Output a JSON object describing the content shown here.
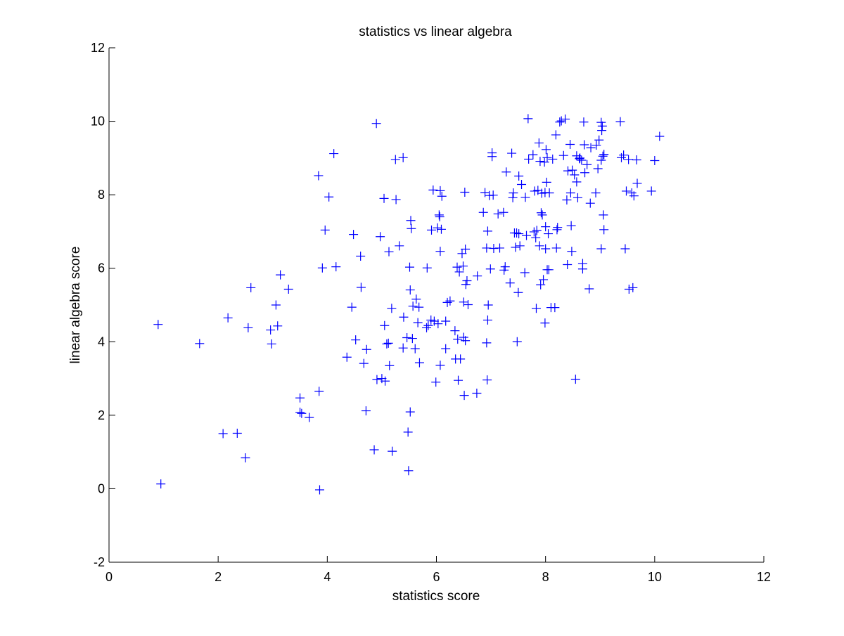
{
  "chart_data": {
    "type": "scatter",
    "title": "statistics vs linear algebra",
    "xlabel": "statistics score",
    "ylabel": "linear algebra score",
    "xlim": [
      0,
      12
    ],
    "ylim": [
      -2,
      12
    ],
    "x_ticks": [
      "0",
      "2",
      "4",
      "6",
      "8",
      "10",
      "12"
    ],
    "y_ticks": [
      "-2",
      "0",
      "2",
      "4",
      "6",
      "8",
      "10",
      "12"
    ],
    "marker": "+",
    "marker_color": "#0000ff",
    "grid": false,
    "legend": false,
    "series": [
      {
        "points": [
          [
            0.9,
            4.47
          ],
          [
            0.95,
            0.13
          ],
          [
            1.66,
            3.95
          ],
          [
            2.09,
            1.5
          ],
          [
            2.18,
            4.65
          ],
          [
            2.35,
            1.51
          ],
          [
            2.5,
            0.84
          ],
          [
            2.55,
            4.38
          ],
          [
            2.6,
            5.47
          ],
          [
            2.96,
            4.32
          ],
          [
            2.98,
            3.94
          ],
          [
            3.06,
            5.0
          ],
          [
            3.09,
            4.43
          ],
          [
            3.14,
            5.82
          ],
          [
            3.29,
            5.43
          ],
          [
            3.5,
            2.47
          ],
          [
            3.5,
            2.08
          ],
          [
            3.53,
            2.05
          ],
          [
            3.67,
            1.94
          ],
          [
            3.84,
            8.52
          ],
          [
            3.85,
            2.65
          ],
          [
            3.86,
            -0.03
          ],
          [
            3.91,
            6.01
          ],
          [
            3.96,
            7.04
          ],
          [
            4.03,
            7.94
          ],
          [
            4.12,
            9.12
          ],
          [
            4.16,
            6.04
          ],
          [
            4.36,
            3.58
          ],
          [
            4.45,
            4.94
          ],
          [
            4.48,
            6.92
          ],
          [
            4.52,
            4.05
          ],
          [
            4.61,
            6.33
          ],
          [
            4.62,
            5.48
          ],
          [
            4.67,
            3.41
          ],
          [
            4.71,
            2.12
          ],
          [
            4.72,
            3.79
          ],
          [
            4.86,
            1.06
          ],
          [
            4.9,
            9.94
          ],
          [
            4.91,
            2.97
          ],
          [
            4.97,
            6.86
          ],
          [
            5.0,
            3.0
          ],
          [
            5.04,
            7.9
          ],
          [
            5.05,
            4.44
          ],
          [
            5.06,
            2.93
          ],
          [
            5.09,
            3.94
          ],
          [
            5.12,
            3.96
          ],
          [
            5.13,
            6.45
          ],
          [
            5.14,
            3.35
          ],
          [
            5.18,
            4.91
          ],
          [
            5.19,
            1.02
          ],
          [
            5.25,
            8.96
          ],
          [
            5.26,
            7.87
          ],
          [
            5.32,
            6.61
          ],
          [
            5.39,
            9.01
          ],
          [
            5.39,
            3.83
          ],
          [
            5.4,
            4.67
          ],
          [
            5.46,
            4.11
          ],
          [
            5.48,
            1.54
          ],
          [
            5.49,
            0.49
          ],
          [
            5.51,
            6.03
          ],
          [
            5.52,
            5.41
          ],
          [
            5.52,
            2.09
          ],
          [
            5.53,
            7.3
          ],
          [
            5.54,
            7.08
          ],
          [
            5.56,
            4.09
          ],
          [
            5.57,
            4.97
          ],
          [
            5.61,
            3.81
          ],
          [
            5.63,
            5.16
          ],
          [
            5.66,
            4.52
          ],
          [
            5.68,
            4.94
          ],
          [
            5.69,
            3.43
          ],
          [
            5.82,
            4.38
          ],
          [
            5.83,
            6.01
          ],
          [
            5.85,
            4.44
          ],
          [
            5.9,
            4.59
          ],
          [
            5.91,
            7.04
          ],
          [
            5.94,
            8.13
          ],
          [
            5.96,
            4.56
          ],
          [
            5.99,
            2.9
          ],
          [
            6.02,
            7.1
          ],
          [
            6.03,
            4.49
          ],
          [
            6.05,
            7.45
          ],
          [
            6.06,
            7.4
          ],
          [
            6.07,
            3.36
          ],
          [
            6.07,
            8.11
          ],
          [
            6.07,
            6.46
          ],
          [
            6.09,
            7.06
          ],
          [
            6.1,
            7.96
          ],
          [
            6.17,
            4.56
          ],
          [
            6.17,
            3.81
          ],
          [
            6.2,
            5.07
          ],
          [
            6.25,
            5.11
          ],
          [
            6.34,
            4.3
          ],
          [
            6.35,
            3.53
          ],
          [
            6.38,
            6.03
          ],
          [
            6.39,
            4.07
          ],
          [
            6.4,
            2.95
          ],
          [
            6.42,
            5.9
          ],
          [
            6.44,
            3.53
          ],
          [
            6.47,
            6.4
          ],
          [
            6.49,
            6.06
          ],
          [
            6.5,
            4.12
          ],
          [
            6.5,
            5.08
          ],
          [
            6.51,
            2.54
          ],
          [
            6.52,
            8.07
          ],
          [
            6.53,
            6.52
          ],
          [
            6.53,
            4.03
          ],
          [
            6.54,
            5.56
          ],
          [
            6.56,
            5.66
          ],
          [
            6.58,
            5.01
          ],
          [
            6.74,
            2.6
          ],
          [
            6.75,
            5.79
          ],
          [
            6.86,
            7.52
          ],
          [
            6.89,
            8.06
          ],
          [
            6.92,
            6.55
          ],
          [
            6.92,
            3.97
          ],
          [
            6.93,
            2.96
          ],
          [
            6.94,
            4.59
          ],
          [
            6.94,
            7.01
          ],
          [
            6.95,
            5.0
          ],
          [
            6.97,
            7.98
          ],
          [
            6.99,
            5.98
          ],
          [
            7.02,
            9.14
          ],
          [
            7.02,
            9.04
          ],
          [
            7.04,
            7.99
          ],
          [
            7.05,
            6.54
          ],
          [
            7.13,
            7.48
          ],
          [
            7.16,
            6.55
          ],
          [
            7.23,
            7.52
          ],
          [
            7.24,
            5.95
          ],
          [
            7.26,
            6.04
          ],
          [
            7.28,
            8.62
          ],
          [
            7.35,
            5.6
          ],
          [
            7.38,
            9.13
          ],
          [
            7.4,
            7.92
          ],
          [
            7.41,
            8.05
          ],
          [
            7.43,
            6.96
          ],
          [
            7.45,
            6.57
          ],
          [
            7.47,
            6.96
          ],
          [
            7.48,
            4.0
          ],
          [
            7.5,
            5.34
          ],
          [
            7.51,
            6.94
          ],
          [
            7.51,
            8.51
          ],
          [
            7.53,
            6.61
          ],
          [
            7.56,
            8.28
          ],
          [
            7.62,
            5.88
          ],
          [
            7.63,
            7.93
          ],
          [
            7.65,
            6.89
          ],
          [
            7.68,
            10.07
          ],
          [
            7.69,
            8.97
          ],
          [
            7.77,
            9.09
          ],
          [
            7.79,
            6.99
          ],
          [
            7.8,
            8.1
          ],
          [
            7.82,
            6.83
          ],
          [
            7.83,
            4.91
          ],
          [
            7.84,
            7.03
          ],
          [
            7.86,
            8.12
          ],
          [
            7.88,
            9.41
          ],
          [
            7.89,
            6.61
          ],
          [
            7.9,
            8.91
          ],
          [
            7.91,
            5.55
          ],
          [
            7.92,
            7.51
          ],
          [
            7.93,
            8.04
          ],
          [
            7.94,
            7.45
          ],
          [
            7.96,
            5.69
          ],
          [
            7.98,
            8.89
          ],
          [
            7.99,
            8.06
          ],
          [
            7.99,
            4.51
          ],
          [
            8.0,
            7.13
          ],
          [
            8.0,
            6.53
          ],
          [
            8.01,
            9.23
          ],
          [
            8.02,
            8.34
          ],
          [
            8.03,
            9.01
          ],
          [
            8.03,
            5.96
          ],
          [
            8.05,
            6.94
          ],
          [
            8.06,
            5.96
          ],
          [
            8.07,
            8.05
          ],
          [
            8.1,
            4.93
          ],
          [
            8.13,
            8.97
          ],
          [
            8.17,
            4.93
          ],
          [
            8.19,
            9.63
          ],
          [
            8.2,
            6.55
          ],
          [
            8.21,
            7.05
          ],
          [
            8.22,
            7.11
          ],
          [
            8.26,
            9.98
          ],
          [
            8.29,
            10.01
          ],
          [
            8.33,
            9.07
          ],
          [
            8.36,
            10.06
          ],
          [
            8.39,
            7.86
          ],
          [
            8.4,
            6.1
          ],
          [
            8.41,
            8.65
          ],
          [
            8.45,
            9.37
          ],
          [
            8.46,
            8.05
          ],
          [
            8.47,
            7.16
          ],
          [
            8.48,
            6.46
          ],
          [
            8.49,
            8.67
          ],
          [
            8.53,
            8.54
          ],
          [
            8.55,
            2.98
          ],
          [
            8.57,
            8.35
          ],
          [
            8.57,
            9.06
          ],
          [
            8.59,
            7.92
          ],
          [
            8.62,
            8.98
          ],
          [
            8.63,
            9.0
          ],
          [
            8.66,
            8.94
          ],
          [
            8.68,
            6.13
          ],
          [
            8.68,
            5.98
          ],
          [
            8.7,
            9.98
          ],
          [
            8.71,
            9.36
          ],
          [
            8.72,
            8.6
          ],
          [
            8.76,
            8.82
          ],
          [
            8.8,
            5.44
          ],
          [
            8.82,
            7.77
          ],
          [
            8.83,
            9.28
          ],
          [
            8.92,
            8.05
          ],
          [
            8.93,
            9.35
          ],
          [
            8.96,
            8.71
          ],
          [
            8.98,
            9.49
          ],
          [
            9.02,
            9.97
          ],
          [
            9.02,
            6.53
          ],
          [
            9.02,
            8.94
          ],
          [
            9.03,
            9.75
          ],
          [
            9.04,
            9.87
          ],
          [
            9.05,
            9.05
          ],
          [
            9.06,
            7.45
          ],
          [
            9.07,
            9.1
          ],
          [
            9.07,
            7.05
          ],
          [
            9.37,
            9.99
          ],
          [
            9.39,
            9.01
          ],
          [
            9.43,
            9.08
          ],
          [
            9.46,
            6.53
          ],
          [
            9.48,
            8.1
          ],
          [
            9.52,
            8.96
          ],
          [
            9.53,
            5.43
          ],
          [
            9.58,
            8.05
          ],
          [
            9.6,
            5.47
          ],
          [
            9.62,
            7.97
          ],
          [
            9.67,
            8.95
          ],
          [
            9.68,
            8.31
          ],
          [
            9.94,
            8.1
          ],
          [
            10.0,
            8.93
          ],
          [
            10.09,
            9.59
          ]
        ]
      }
    ]
  }
}
